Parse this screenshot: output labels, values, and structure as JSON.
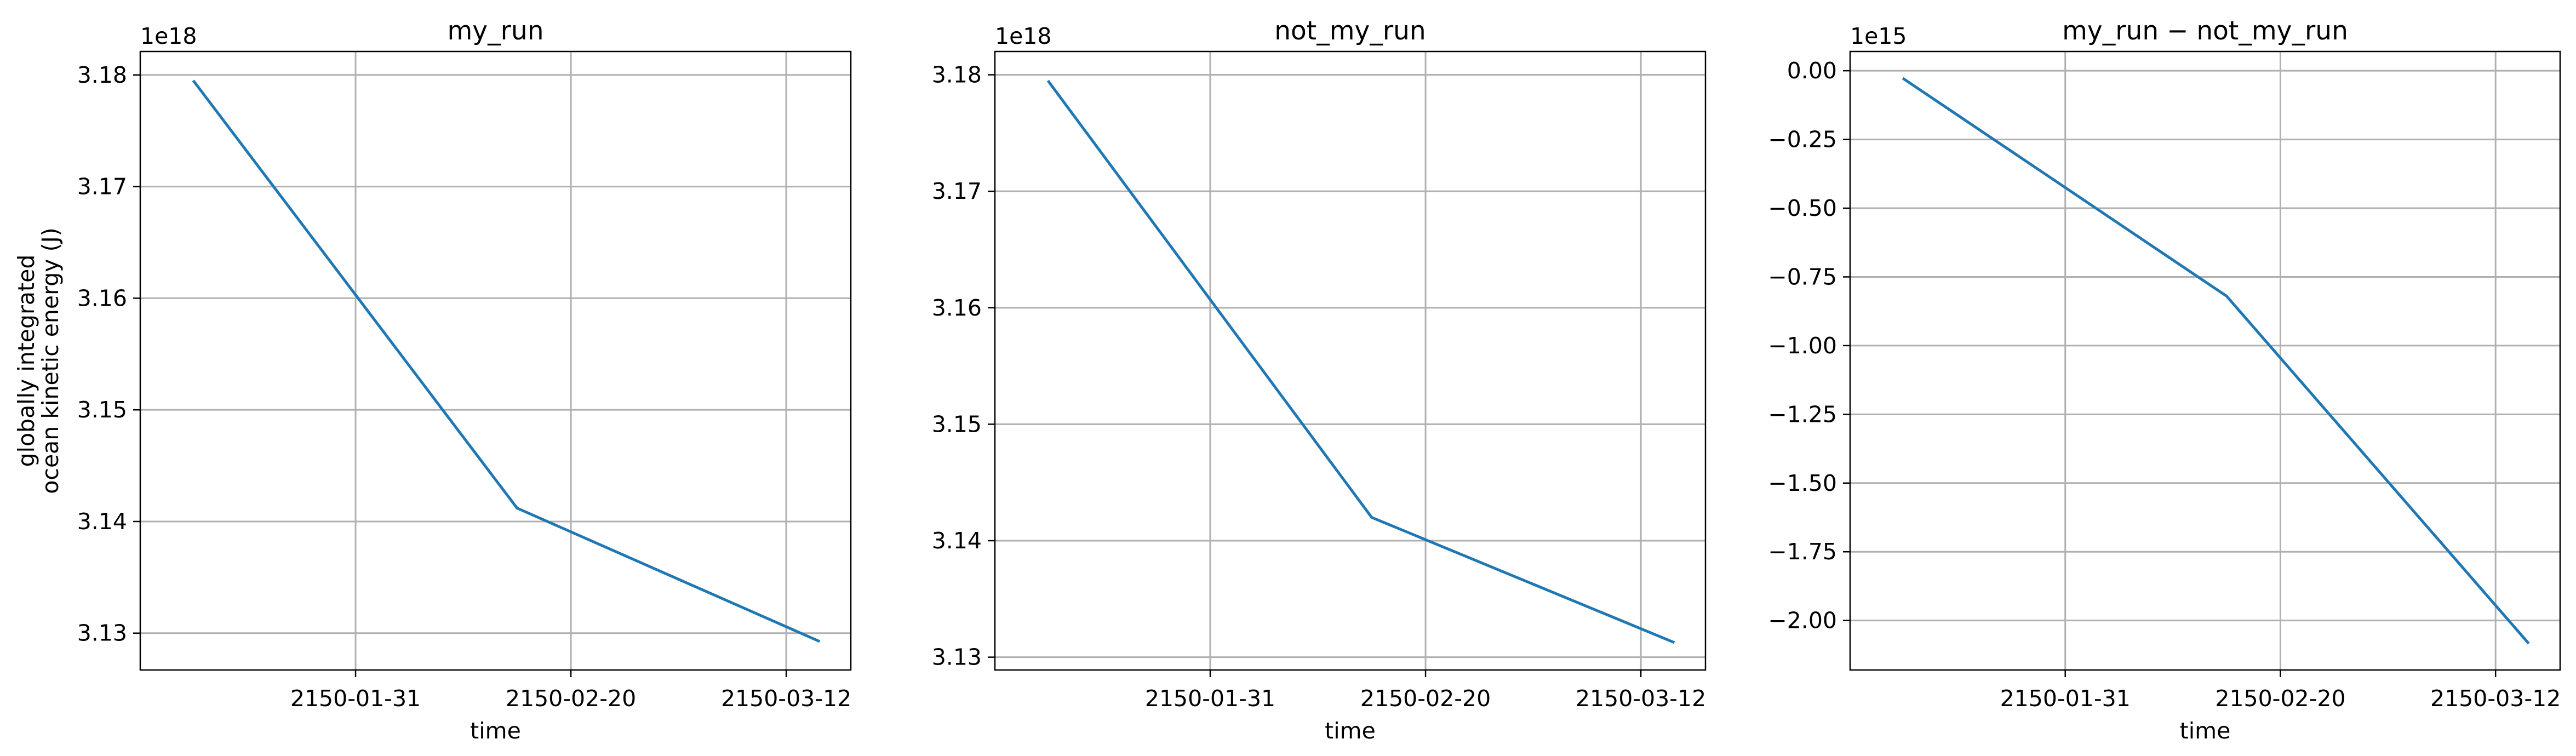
{
  "chart_data": [
    {
      "type": "line",
      "title": "my_run",
      "xlabel": "time",
      "ylabel": [
        "globally integrated",
        "ocean kinetic energy (J)"
      ],
      "offset_label": "1e18",
      "grid": true,
      "x": [
        "2150-01-16",
        "2150-02-15",
        "2150-03-15"
      ],
      "xlim": [
        "2150-01-11",
        "2150-03-18"
      ],
      "xticks": [
        "2150-01-31",
        "2150-02-20",
        "2150-03-12"
      ],
      "ylim": [
        3.1267,
        3.1821
      ],
      "yticks": [
        "3.13",
        "3.14",
        "3.15",
        "3.16",
        "3.17",
        "3.18"
      ],
      "series": [
        {
          "values": [
            3.1794,
            3.1412,
            3.1293
          ],
          "color": "#1f77b4"
        }
      ]
    },
    {
      "type": "line",
      "title": "not_my_run",
      "xlabel": "time",
      "ylabel": "",
      "offset_label": "1e18",
      "grid": true,
      "x": [
        "2150-01-16",
        "2150-02-15",
        "2150-03-15"
      ],
      "xlim": [
        "2150-01-11",
        "2150-03-18"
      ],
      "xticks": [
        "2150-01-31",
        "2150-02-20",
        "2150-03-12"
      ],
      "ylim": [
        3.1289,
        3.182
      ],
      "yticks": [
        "3.13",
        "3.14",
        "3.15",
        "3.16",
        "3.17",
        "3.18"
      ],
      "series": [
        {
          "values": [
            3.1794,
            3.142,
            3.1313
          ],
          "color": "#1f77b4"
        }
      ]
    },
    {
      "type": "line",
      "title": "my_run − not_my_run",
      "xlabel": "time",
      "ylabel": "",
      "offset_label": "1e15",
      "grid": true,
      "x": [
        "2150-01-16",
        "2150-02-15",
        "2150-03-15"
      ],
      "xlim": [
        "2150-01-11",
        "2150-03-18"
      ],
      "xticks": [
        "2150-01-31",
        "2150-02-20",
        "2150-03-12"
      ],
      "ylim": [
        -2.18,
        0.07
      ],
      "yticks": [
        "0.00",
        "−0.25",
        "−0.50",
        "−0.75",
        "−1.00",
        "−1.25",
        "−1.50",
        "−1.75",
        "−2.00"
      ],
      "series": [
        {
          "values": [
            -0.03,
            -0.82,
            -2.08
          ],
          "color": "#1f77b4"
        }
      ]
    }
  ]
}
